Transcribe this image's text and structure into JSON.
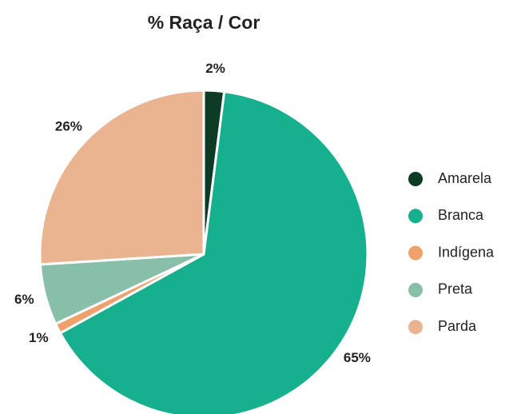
{
  "chart_data": {
    "type": "pie",
    "title": "% Raça / Cor",
    "categories": [
      "Amarela",
      "Branca",
      "Indígena",
      "Preta",
      "Parda"
    ],
    "values": [
      2,
      65,
      1,
      6,
      26
    ],
    "value_labels": [
      "2%",
      "65%",
      "1%",
      "6%",
      "26%"
    ],
    "colors": [
      "#0d3b25",
      "#16b08f",
      "#f0a06a",
      "#88bfa8",
      "#ebb490"
    ],
    "legend": "right"
  }
}
